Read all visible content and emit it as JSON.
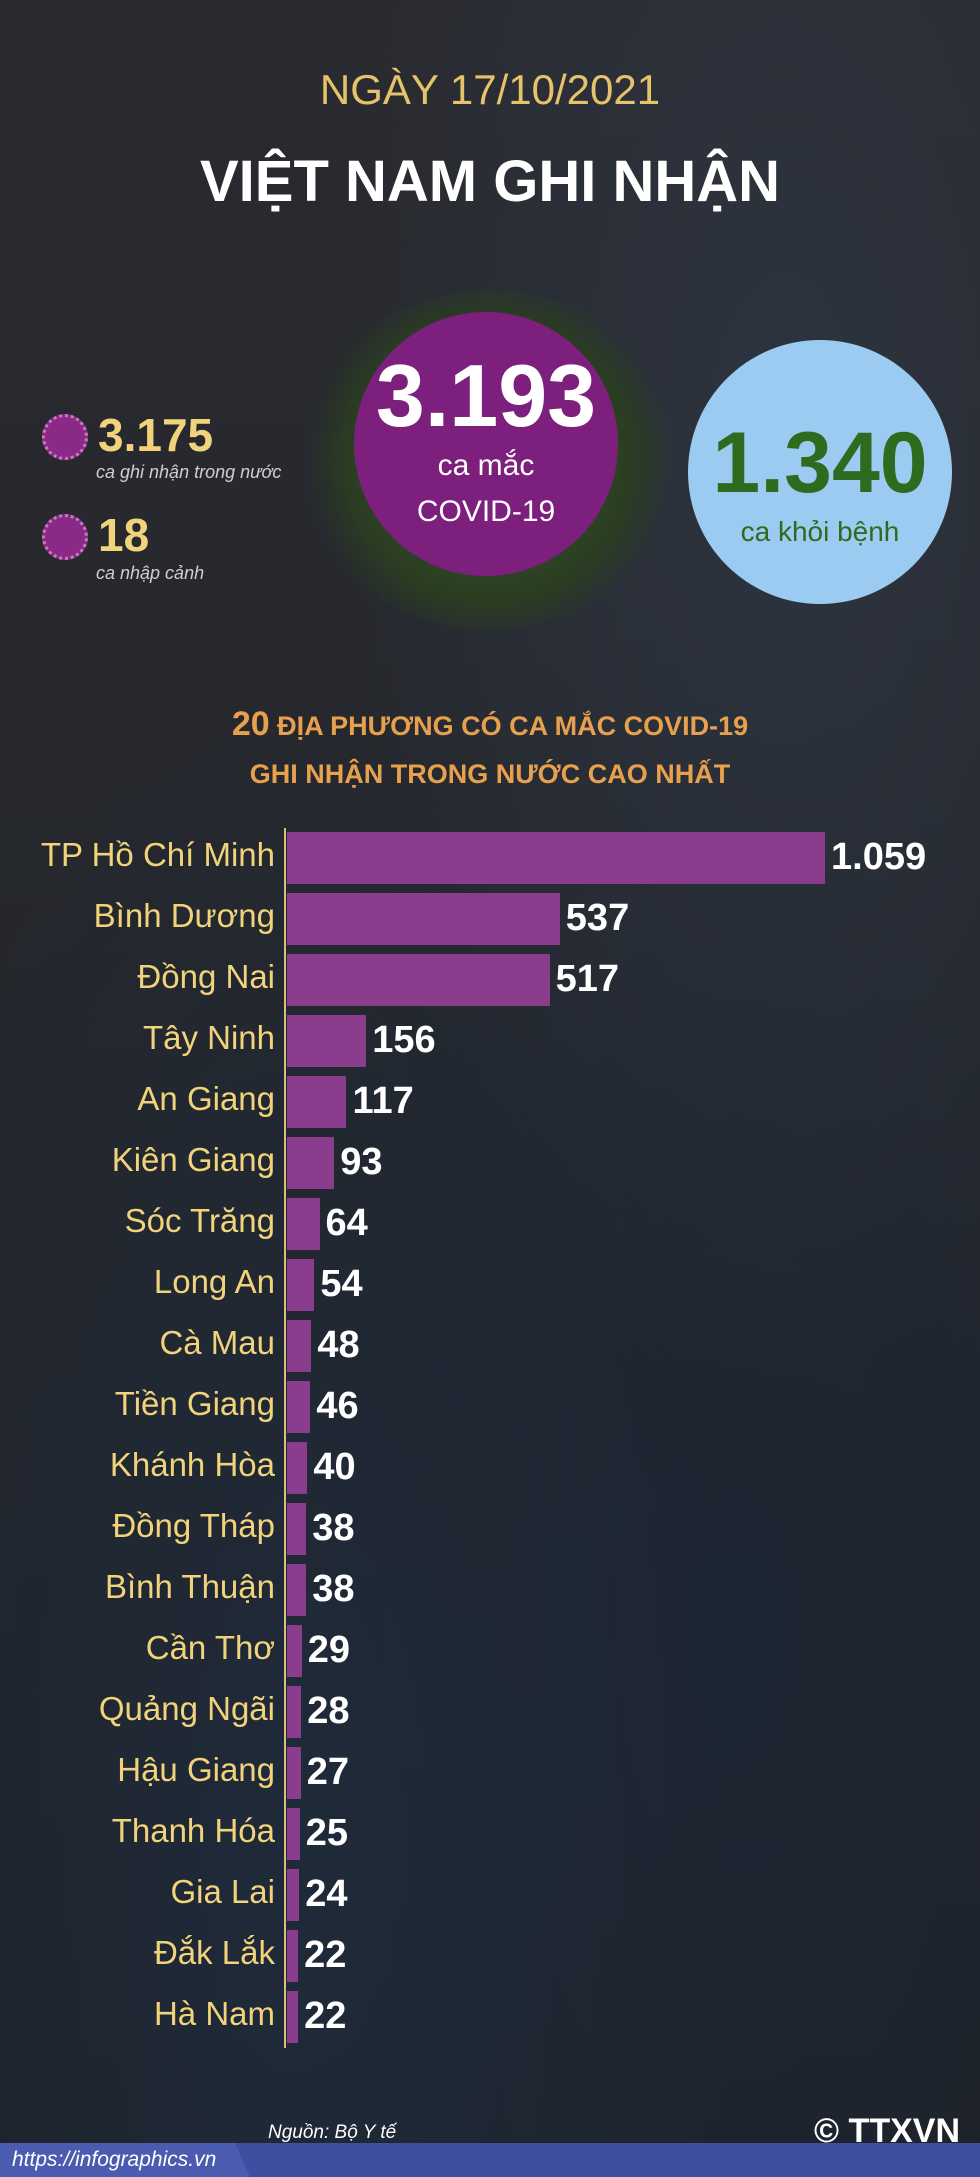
{
  "header": {
    "date": "NGÀY 17/10/2021",
    "headline": "VIỆT NAM GHI NHẬN"
  },
  "stats": {
    "domestic": {
      "value": "3.175",
      "label": "ca ghi nhận trong nước"
    },
    "imported": {
      "value": "18",
      "label": "ca nhập cảnh"
    },
    "total": {
      "value": "3.193",
      "label1": "ca mắc",
      "label2": "COVID-19"
    },
    "recovered": {
      "value": "1.340",
      "label": "ca khỏi bệnh"
    }
  },
  "colors": {
    "gold": "#f0d37a",
    "purple": "#8a3d8c",
    "blue": "#9ccbf1",
    "green": "#2f6b1f",
    "orange": "#e6a04e"
  },
  "chart_data": {
    "type": "bar",
    "orientation": "horizontal",
    "title_number": "20",
    "title_line1": " ĐỊA PHƯƠNG CÓ CA MẮC COVID-19",
    "title_line2": "GHI NHẬN TRONG NƯỚC CAO NHẤT",
    "categories": [
      "TP Hồ Chí Minh",
      "Bình Dương",
      "Đồng Nai",
      "Tây Ninh",
      "An Giang",
      "Kiên Giang",
      "Sóc Trăng",
      "Long An",
      "Cà Mau",
      "Tiền Giang",
      "Khánh Hòa",
      "Đồng Tháp",
      "Bình Thuận",
      "Cần Thơ",
      "Quảng Ngãi",
      "Hậu Giang",
      "Thanh Hóa",
      "Gia Lai",
      "Đắk Lắk",
      "Hà Nam"
    ],
    "values": [
      1059,
      537,
      517,
      156,
      117,
      93,
      64,
      54,
      48,
      46,
      40,
      38,
      38,
      29,
      28,
      27,
      25,
      24,
      22,
      22
    ],
    "value_labels": [
      "1.059",
      "537",
      "517",
      "156",
      "117",
      "93",
      "64",
      "54",
      "48",
      "46",
      "40",
      "38",
      "38",
      "29",
      "28",
      "27",
      "25",
      "24",
      "22",
      "22"
    ]
  },
  "footer": {
    "source": "Nguồn: Bộ Y tế",
    "url": "https://infographics.vn",
    "logo": "© TTXVN"
  }
}
